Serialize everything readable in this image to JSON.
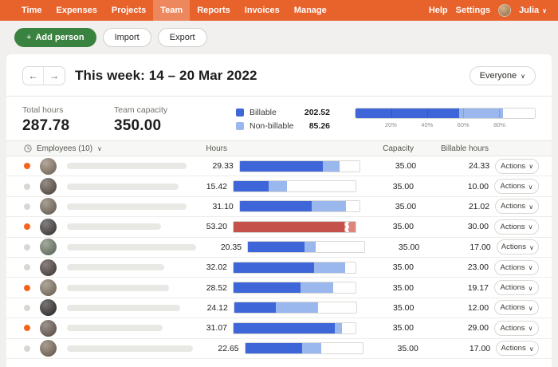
{
  "icons": {
    "back_arrow": "←",
    "forward_arrow": "→",
    "chevron_down": "∨",
    "plus": "+"
  },
  "colors": {
    "nav_orange": "#e8622c",
    "green": "#3a8240",
    "billable_blue": "#3e66d8",
    "nonbillable_blue": "#9ab7ee",
    "over_red": "#c5524a",
    "over_red_light": "#e0857d",
    "status_orange": "#f4661f",
    "status_gray": "#d7d7d3"
  },
  "nav": {
    "items": [
      {
        "label": "Time",
        "active": false
      },
      {
        "label": "Expenses",
        "active": false
      },
      {
        "label": "Projects",
        "active": false
      },
      {
        "label": "Team",
        "active": true
      },
      {
        "label": "Reports",
        "active": false
      },
      {
        "label": "Invoices",
        "active": false
      },
      {
        "label": "Manage",
        "active": false
      }
    ],
    "help": "Help",
    "settings": "Settings",
    "user": "Julia"
  },
  "toolbar": {
    "add_person": "Add person",
    "import": "Import",
    "export": "Export"
  },
  "header": {
    "title": "This week: 14 – 20 Mar 2022",
    "filter": "Everyone"
  },
  "summary": {
    "total_hours_label": "Total hours",
    "total_hours": "287.78",
    "capacity_label": "Team capacity",
    "capacity": "350.00",
    "legend": {
      "billable_label": "Billable",
      "billable_value": "202.52",
      "nonbillable_label": "Non-billable",
      "nonbillable_value": "85.26"
    },
    "progress": {
      "billable_pct": 57.9,
      "total_pct": 82.2,
      "ticks": [
        "20%",
        "40%",
        "60%",
        "80%"
      ]
    }
  },
  "table": {
    "header": {
      "employees": "Employees (10)",
      "hours": "Hours",
      "capacity": "Capacity",
      "billable_hours": "Billable hours"
    },
    "rows": [
      {
        "dot": "orange",
        "avatar_color": "#8a7a66",
        "pill_width": 150,
        "hours": "29.33",
        "capacity": "35.00",
        "billable": "24.33",
        "actions": "Actions",
        "bar": {
          "style": "blue",
          "billable_pct": 69.5,
          "total_pct": 83.8
        }
      },
      {
        "dot": "gray",
        "avatar_color": "#5d4f46",
        "pill_width": 140,
        "hours": "15.42",
        "capacity": "35.00",
        "billable": "10.00",
        "actions": "Actions",
        "bar": {
          "style": "blue",
          "billable_pct": 28.6,
          "total_pct": 44.1
        }
      },
      {
        "dot": "gray",
        "avatar_color": "#7a6e5e",
        "pill_width": 150,
        "hours": "31.10",
        "capacity": "35.00",
        "billable": "21.02",
        "actions": "Actions",
        "bar": {
          "style": "blue",
          "billable_pct": 60.1,
          "total_pct": 88.9
        }
      },
      {
        "dot": "orange",
        "avatar_color": "#3e3a38",
        "pill_width": 118,
        "hours": "53.20",
        "capacity": "35.00",
        "billable": "30.00",
        "actions": "Actions",
        "bar": {
          "style": "red",
          "billable_pct": 91.0,
          "total_pct": 100
        }
      },
      {
        "dot": "gray",
        "avatar_color": "#6f7d67",
        "pill_width": 162,
        "hours": "20.35",
        "capacity": "35.00",
        "billable": "17.00",
        "actions": "Actions",
        "bar": {
          "style": "blue",
          "billable_pct": 48.6,
          "total_pct": 58.1
        }
      },
      {
        "dot": "gray",
        "avatar_color": "#4a3f3b",
        "pill_width": 122,
        "hours": "32.02",
        "capacity": "35.00",
        "billable": "23.00",
        "actions": "Actions",
        "bar": {
          "style": "blue",
          "billable_pct": 65.7,
          "total_pct": 91.5
        }
      },
      {
        "dot": "orange",
        "avatar_color": "#857663",
        "pill_width": 128,
        "hours": "28.52",
        "capacity": "35.00",
        "billable": "19.17",
        "actions": "Actions",
        "bar": {
          "style": "blue",
          "billable_pct": 54.8,
          "total_pct": 81.5
        }
      },
      {
        "dot": "gray",
        "avatar_color": "#2f2b29",
        "pill_width": 142,
        "hours": "24.12",
        "capacity": "35.00",
        "billable": "12.00",
        "actions": "Actions",
        "bar": {
          "style": "blue",
          "billable_pct": 34.3,
          "total_pct": 68.9
        }
      },
      {
        "dot": "orange",
        "avatar_color": "#6b5a50",
        "pill_width": 120,
        "hours": "31.07",
        "capacity": "35.00",
        "billable": "29.00",
        "actions": "Actions",
        "bar": {
          "style": "blue",
          "billable_pct": 82.9,
          "total_pct": 88.8
        }
      },
      {
        "dot": "gray",
        "avatar_color": "#7c6a58",
        "pill_width": 158,
        "hours": "22.65",
        "capacity": "35.00",
        "billable": "17.00",
        "actions": "Actions",
        "bar": {
          "style": "blue",
          "billable_pct": 48.6,
          "total_pct": 64.7
        }
      }
    ]
  }
}
